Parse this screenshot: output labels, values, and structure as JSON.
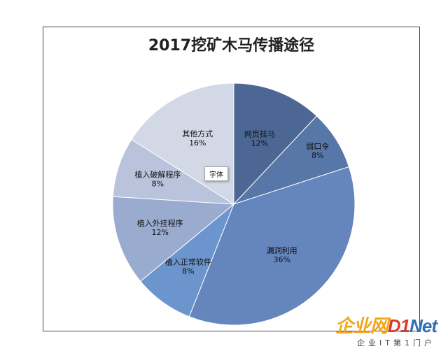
{
  "chart_data": {
    "type": "pie",
    "title": "2017挖矿木马传播途径",
    "slices": [
      {
        "label": "网页挂马",
        "percent_label": "12%",
        "value": 12,
        "color": "#4c6793"
      },
      {
        "label": "弱口令",
        "percent_label": "8%",
        "value": 8,
        "color": "#5777a8"
      },
      {
        "label": "漏洞利用",
        "percent_label": "36%",
        "value": 36,
        "color": "#6585bd"
      },
      {
        "label": "植入正常软件",
        "percent_label": "8%",
        "value": 8,
        "color": "#6d95cd"
      },
      {
        "label": "植入外挂程序",
        "percent_label": "12%",
        "value": 12,
        "color": "#9aabd0"
      },
      {
        "label": "植入破解程序",
        "percent_label": "8%",
        "value": 8,
        "color": "#b9c3dc"
      },
      {
        "label": "其他方式",
        "percent_label": "16%",
        "value": 16,
        "color": "#d3d8e6"
      }
    ],
    "start_angle": "12 o'clock",
    "direction": "clockwise",
    "legend": "none"
  },
  "tooltip": {
    "text": "字体"
  },
  "watermark": {
    "cn": "企业网",
    "num": "D1",
    "en": "Net",
    "sub": "企业IT第1门户"
  }
}
